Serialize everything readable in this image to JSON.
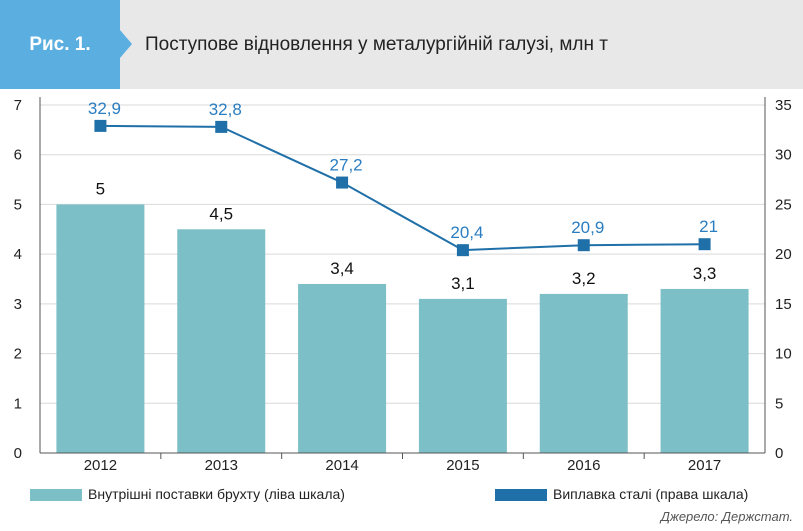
{
  "header": {
    "figure_label": "Рис. 1.",
    "title": "Поступове відновлення у металургійній галузі, млн т"
  },
  "colors": {
    "badge": "#5aaee0",
    "header_bg": "#e8e8e8",
    "bar": "#7dbfc6",
    "line": "#1f6fa8",
    "line_label": "#2a7dc0"
  },
  "chart_data": {
    "type": "bar",
    "categories": [
      "2012",
      "2013",
      "2014",
      "2015",
      "2016",
      "2017"
    ],
    "series": [
      {
        "name": "Внутрішні поставки брухту (ліва шкала)",
        "type": "bar",
        "axis": "left",
        "values": [
          5,
          4.5,
          3.4,
          3.1,
          3.2,
          3.3
        ],
        "labels": [
          "5",
          "4,5",
          "3,4",
          "3,1",
          "3,2",
          "3,3"
        ]
      },
      {
        "name": "Виплавка сталі (права шкала)",
        "type": "line",
        "axis": "right",
        "values": [
          32.9,
          32.8,
          27.2,
          20.4,
          20.9,
          21
        ],
        "labels": [
          "32,9",
          "32,8",
          "27,2",
          "20,4",
          "20,9",
          "21"
        ]
      }
    ],
    "y_left": {
      "range": [
        0,
        7
      ],
      "ticks": [
        "0",
        "1",
        "2",
        "3",
        "4",
        "5",
        "6",
        "7"
      ]
    },
    "y_right": {
      "range": [
        0,
        35
      ],
      "ticks": [
        "0",
        "5",
        "10",
        "15",
        "20",
        "25",
        "30",
        "35"
      ]
    },
    "legend_position": "bottom",
    "grid": true
  },
  "legend": {
    "bar_label": "Внутрішні поставки брухту (ліва шкала)",
    "line_label": "Виплавка сталі (права шкала)"
  },
  "source": "Джерело: Держстат."
}
